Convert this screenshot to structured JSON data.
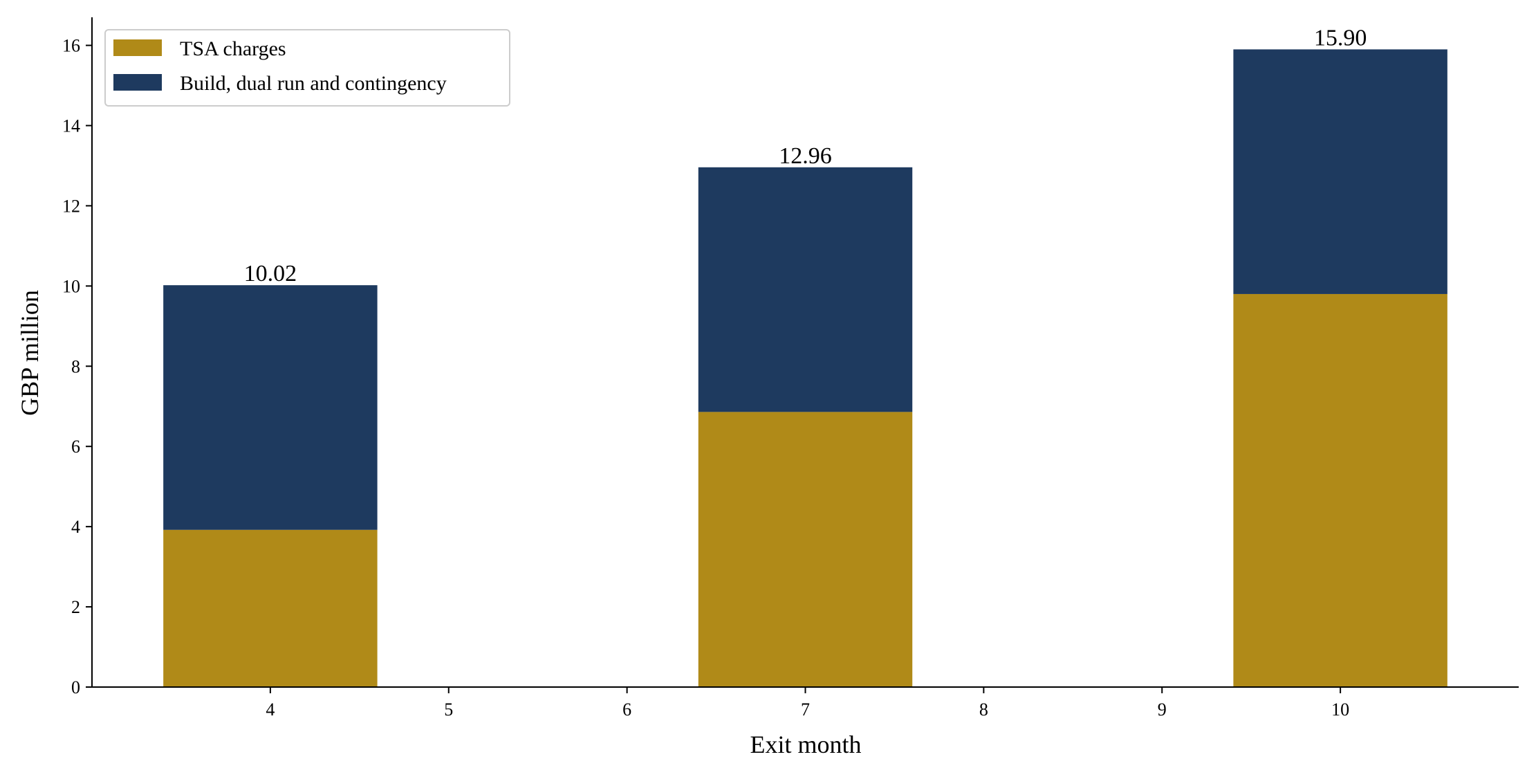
{
  "chart_data": {
    "type": "bar",
    "stacked": true,
    "title": "",
    "xlabel": "Exit month",
    "ylabel": "GBP million",
    "x": [
      4,
      7,
      10
    ],
    "xticks": [
      4,
      5,
      6,
      7,
      8,
      9,
      10
    ],
    "xlim": [
      3,
      11
    ],
    "ylim": [
      0,
      16.7
    ],
    "yticks": [
      0,
      2,
      4,
      6,
      8,
      10,
      12,
      14,
      16
    ],
    "grid": false,
    "legend_position": "top-left",
    "series": [
      {
        "name": "TSA charges",
        "color": "#b08a18",
        "values": [
          3.92,
          6.86,
          9.8
        ]
      },
      {
        "name": "Build, dual run and contingency",
        "color": "#1e3a5f",
        "values": [
          6.1,
          6.1,
          6.1
        ]
      }
    ],
    "totals": [
      "10.02",
      "12.96",
      "15.90"
    ]
  }
}
